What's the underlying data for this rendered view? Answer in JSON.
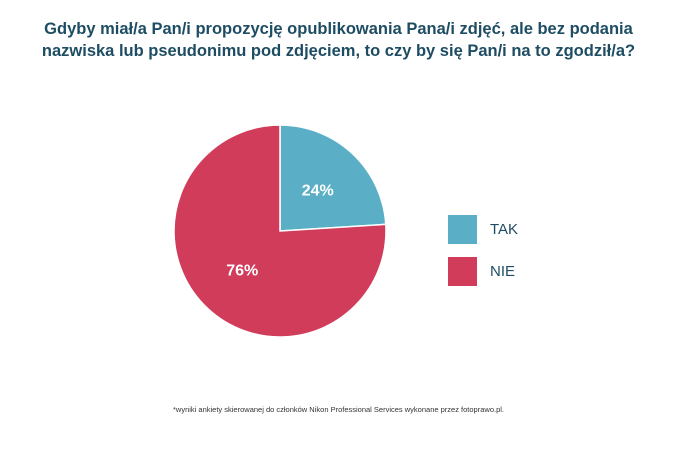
{
  "title": {
    "line1": "Gdyby miał/a Pan/i propozycję opublikowania Pana/i zdjęć, ale bez podania",
    "line2": "nazwiska lub pseudonimu pod zdjęciem, to czy by się Pan/i na to zgodził/a?"
  },
  "footnote": "*wyniki ankiety skierowanej do członków Nikon Professional Services wykonane przez fotoprawo.pl.",
  "colors": {
    "title": "#1e4d63",
    "tak": "#5aaec6",
    "nie": "#d13c5b"
  },
  "chart_data": {
    "type": "pie",
    "categories": [
      "TAK",
      "NIE"
    ],
    "values": [
      24,
      76
    ],
    "data_labels": [
      "24%",
      "76%"
    ],
    "colors": [
      "#5aaec6",
      "#d13c5b"
    ],
    "start": "12 o'clock, clockwise",
    "legend": {
      "position": "right",
      "entries": [
        "TAK",
        "NIE"
      ]
    }
  }
}
